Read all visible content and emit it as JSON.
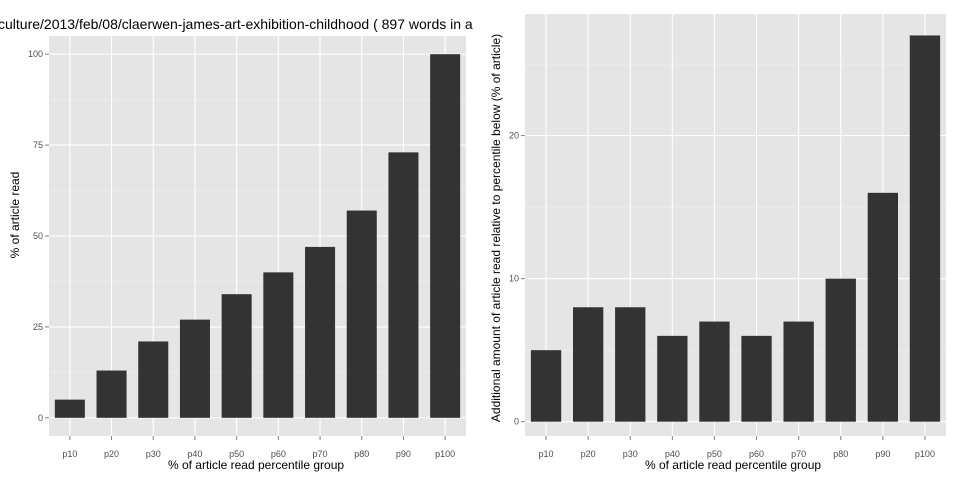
{
  "chart_data": [
    {
      "type": "bar",
      "title": "culture/2013/feb/08/claerwen-james-art-exhibition-childhood ( 897 words in a",
      "xlabel": "% of article read percentile group",
      "ylabel": "% of article read",
      "categories": [
        "p10",
        "p20",
        "p30",
        "p40",
        "p50",
        "p60",
        "p70",
        "p80",
        "p90",
        "p100"
      ],
      "values": [
        5,
        13,
        21,
        27,
        34,
        40,
        47,
        57,
        73,
        100
      ],
      "ylim": [
        -5,
        105
      ],
      "yticks": [
        0,
        25,
        50,
        75,
        100
      ],
      "grid": true,
      "bar_color": "#333333",
      "panel_color": "#e5e5e5"
    },
    {
      "type": "bar",
      "title": "",
      "xlabel": "% of article read percentile group",
      "ylabel": "Additional amount of article read relative to percentile below (% of article)",
      "categories": [
        "p10",
        "p20",
        "p30",
        "p40",
        "p50",
        "p60",
        "p70",
        "p80",
        "p90",
        "p100"
      ],
      "values": [
        5,
        8,
        8,
        6,
        7,
        6,
        7,
        10,
        16,
        27
      ],
      "ylim": [
        -1,
        28.5
      ],
      "yticks": [
        0,
        10,
        20
      ],
      "grid": true,
      "bar_color": "#333333",
      "panel_color": "#e5e5e5"
    }
  ]
}
